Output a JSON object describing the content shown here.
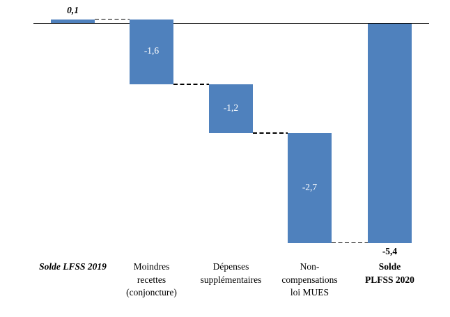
{
  "chart_data": {
    "type": "waterfall",
    "title": "",
    "grid": false,
    "legend": null,
    "bar_color": "#4f81bd",
    "inside_label_color": "#ffffff",
    "outside_label_color": "#000000",
    "axis_line_color": "#000000",
    "connector_line_color": "#000000",
    "baseline": 0,
    "ylim": [
      -5.4,
      0.1
    ],
    "categories": [
      "Solde LFSS 2019",
      "Moindres recettes (conjoncture)",
      "Dépenses supplémentaires",
      "Non-compensations loi MUES",
      "Solde PLFSS 2020"
    ],
    "bars": [
      {
        "name": "Solde LFSS 2019",
        "label_lines": [
          "Solde LFSS 2019"
        ],
        "value": 0.1,
        "value_label": "0,1",
        "start": 0,
        "end": 0.1,
        "kind": "total-start",
        "category_style": "bold-italic",
        "value_label_style": "bold-italic",
        "value_label_position": "above"
      },
      {
        "name": "Moindres recettes (conjoncture)",
        "label_lines": [
          "Moindres",
          "recettes",
          "(conjoncture)"
        ],
        "value": -1.6,
        "value_label": "-1,6",
        "start": 0.1,
        "end": -1.5,
        "kind": "delta",
        "category_style": "normal",
        "value_label_style": "normal",
        "value_label_position": "inside"
      },
      {
        "name": "Dépenses supplémentaires",
        "label_lines": [
          "Dépenses",
          "supplémentaires"
        ],
        "value": -1.2,
        "value_label": "-1,2",
        "start": -1.5,
        "end": -2.7,
        "kind": "delta",
        "category_style": "normal",
        "value_label_style": "normal",
        "value_label_position": "inside"
      },
      {
        "name": "Non-compensations loi MUES",
        "label_lines": [
          "Non-",
          "compensations",
          "loi MUES"
        ],
        "value": -2.7,
        "value_label": "-2,7",
        "start": -2.7,
        "end": -5.4,
        "kind": "delta",
        "category_style": "normal",
        "value_label_style": "normal",
        "value_label_position": "inside"
      },
      {
        "name": "Solde PLFSS 2020",
        "label_lines": [
          "Solde",
          "PLFSS 2020"
        ],
        "value": -5.4,
        "value_label": "-5,4",
        "start": 0,
        "end": -5.4,
        "kind": "total-end",
        "category_style": "bold",
        "value_label_style": "bold",
        "value_label_position": "below"
      }
    ],
    "connectors": [
      {
        "level": 0.1,
        "from_bar": 0,
        "to_bar": 1
      },
      {
        "level": -1.5,
        "from_bar": 1,
        "to_bar": 2
      },
      {
        "level": -2.7,
        "from_bar": 2,
        "to_bar": 3
      },
      {
        "level": -5.4,
        "from_bar": 3,
        "to_bar": 4
      }
    ]
  }
}
